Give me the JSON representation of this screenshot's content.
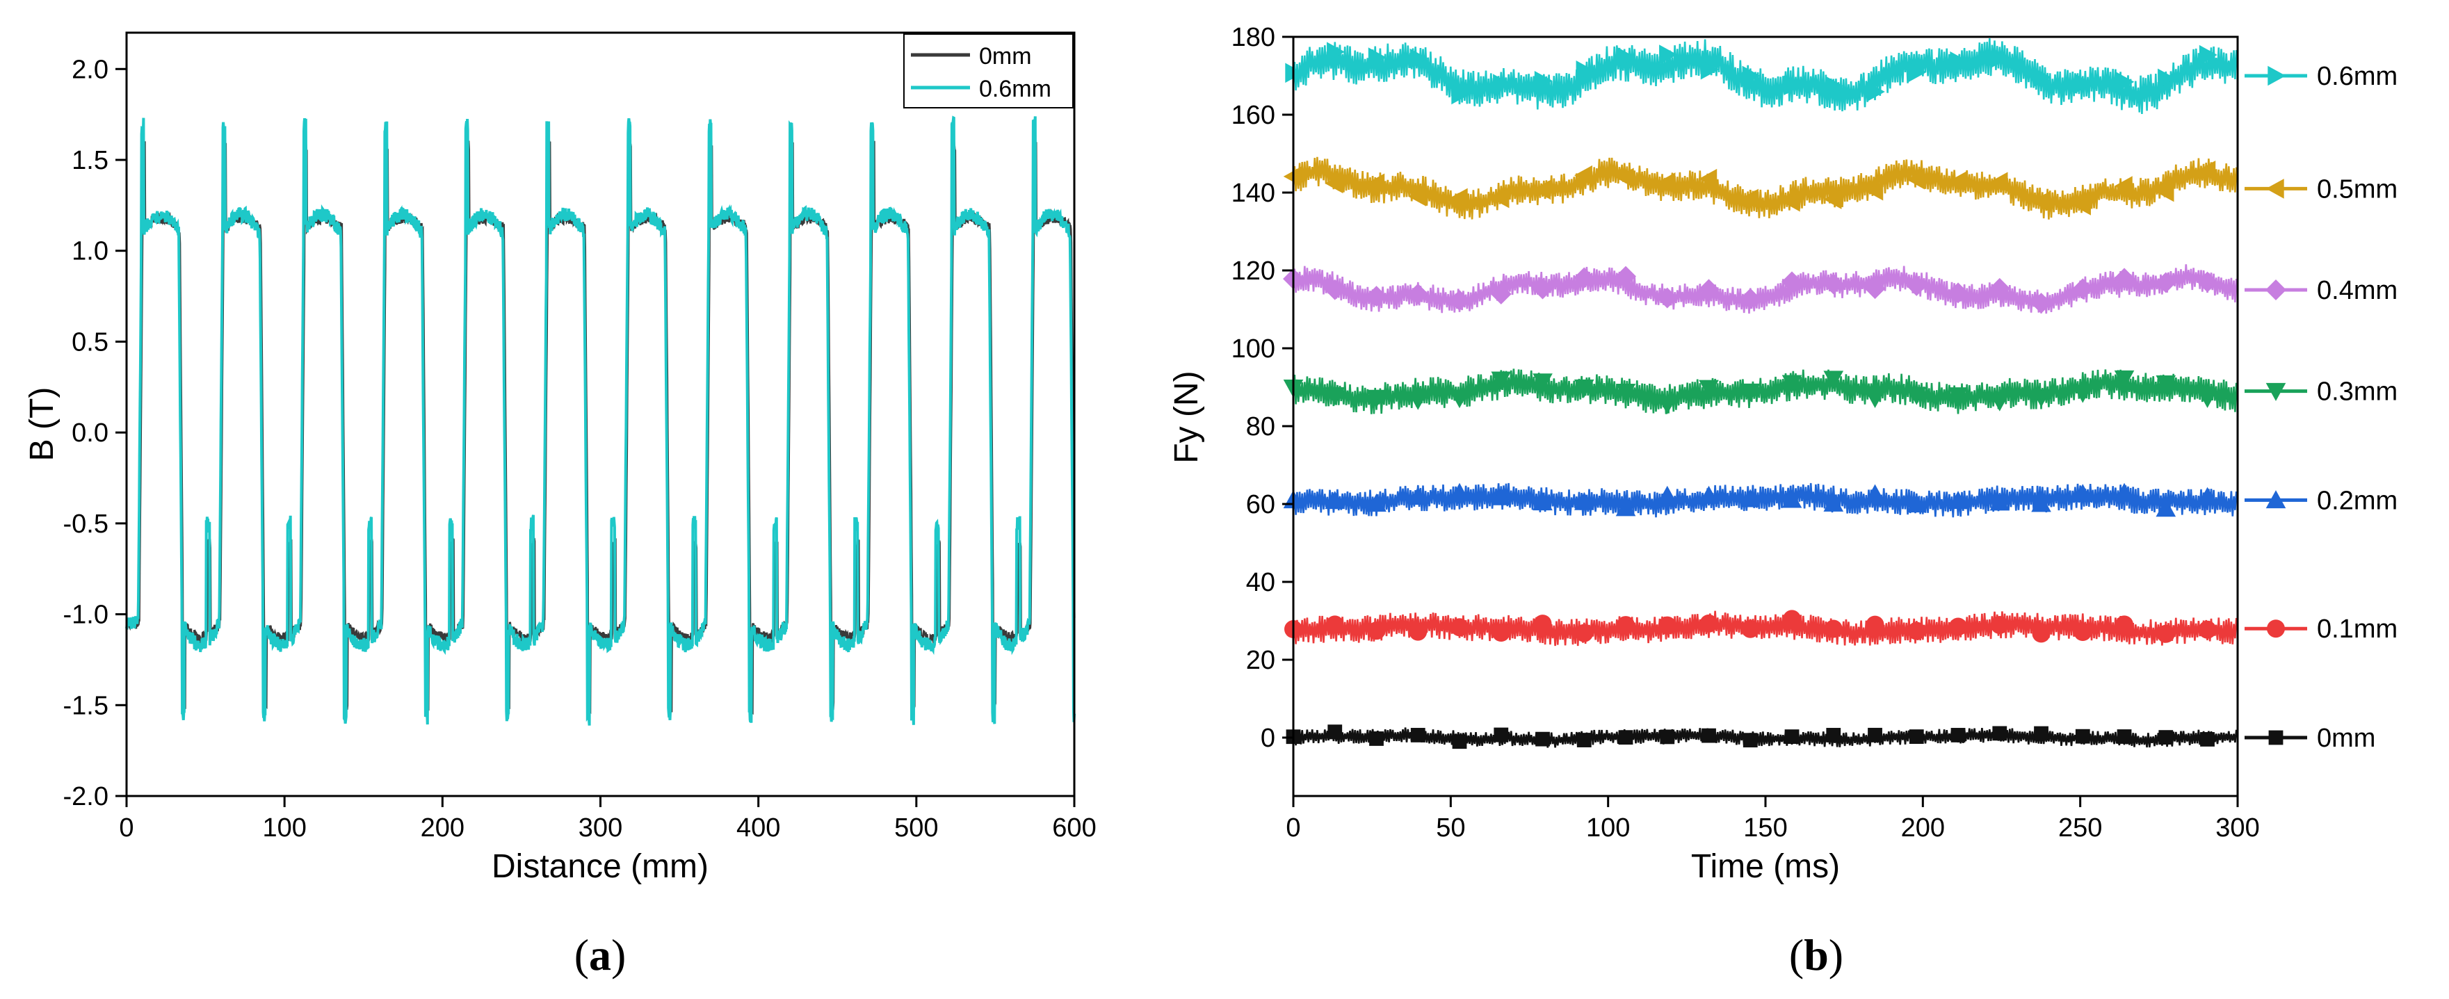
{
  "chart_data": [
    {
      "panel": "(a)",
      "caption": {
        "open": "(",
        "letter": "a",
        "close": ")"
      },
      "type": "line",
      "title": "",
      "xlabel": "Distance (mm)",
      "ylabel": "B (T)",
      "xlim": [
        0,
        600
      ],
      "ylim": [
        -2.0,
        2.2
      ],
      "xticks": [
        "0",
        "100",
        "200",
        "300",
        "400",
        "500",
        "600"
      ],
      "yticks": [
        "-2.0",
        "-1.5",
        "-1.0",
        "-0.5",
        "0.0",
        "0.5",
        "1.0",
        "1.5",
        "2.0"
      ],
      "grid": false,
      "legend": "top-right",
      "waveform": {
        "period_mm": 51.3,
        "first_rise_mm": 8,
        "high_level_T": 1.12,
        "low_level_T": -1.05,
        "peak_T": 1.7,
        "trough_T": -1.55
      },
      "series": [
        {
          "name": "0mm",
          "color": "#3a3a3a"
        },
        {
          "name": "0.6mm",
          "color": "#1ec8c8"
        }
      ]
    },
    {
      "panel": "(b)",
      "caption": {
        "open": "(",
        "letter": "b",
        "close": ")"
      },
      "type": "line",
      "title": "",
      "xlabel": "Time (ms)",
      "ylabel": "Fy (N)",
      "xlim": [
        0,
        300
      ],
      "ylim": [
        -15,
        180
      ],
      "xticks": [
        "0",
        "50",
        "100",
        "150",
        "200",
        "250",
        "300"
      ],
      "yticks": [
        "0",
        "20",
        "40",
        "60",
        "80",
        "100",
        "120",
        "140",
        "160",
        "180"
      ],
      "grid": false,
      "legend": "right",
      "marker_spacing_ms": 13.2,
      "series": [
        {
          "name": "0.6mm",
          "mean": 170,
          "wave_amp": 4,
          "noise": 5,
          "color": "#1ec8c8",
          "marker": "triangle-right"
        },
        {
          "name": "0.5mm",
          "mean": 141,
          "wave_amp": 3,
          "noise": 4,
          "color": "#d4a017",
          "marker": "triangle-left"
        },
        {
          "name": "0.4mm",
          "mean": 115,
          "wave_amp": 2.5,
          "noise": 3.5,
          "color": "#c77ee0",
          "marker": "diamond"
        },
        {
          "name": "0.3mm",
          "mean": 89,
          "wave_amp": 1.5,
          "noise": 4,
          "color": "#1aa25a",
          "marker": "triangle-down"
        },
        {
          "name": "0.2mm",
          "mean": 61,
          "wave_amp": 0.8,
          "noise": 3.5,
          "color": "#1f66d6",
          "marker": "triangle-up"
        },
        {
          "name": "0.1mm",
          "mean": 28,
          "wave_amp": 0.8,
          "noise": 3.5,
          "color": "#ec3a3a",
          "marker": "circle"
        },
        {
          "name": "0mm",
          "mean": 0,
          "wave_amp": 0.5,
          "noise": 2,
          "color": "#111111",
          "marker": "square"
        }
      ]
    }
  ]
}
